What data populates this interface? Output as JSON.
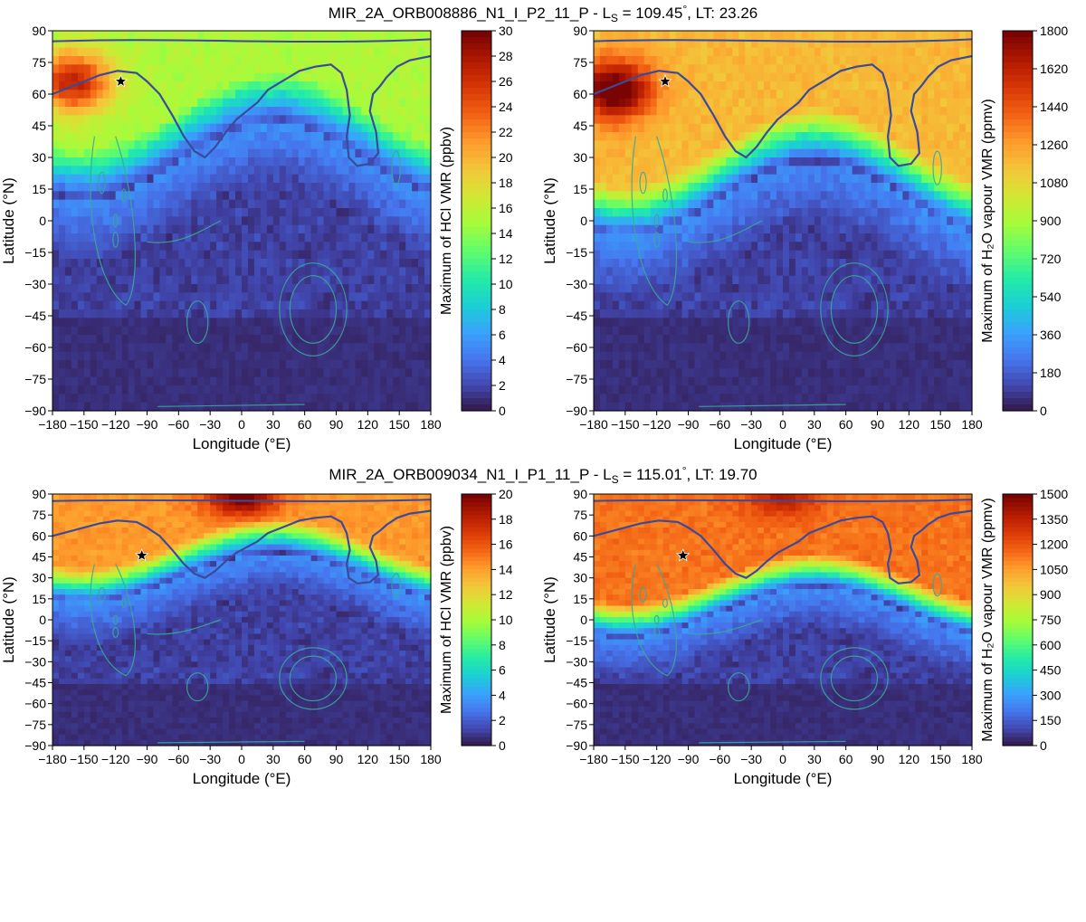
{
  "figure": {
    "rows": [
      {
        "title": "MIR_2A_ORB008886_N1_I_P2_11_P - L",
        "title_sub": "S",
        "title_tail": " = 109.45",
        "title_deg": "°",
        "title_end": ", LT: 23.26"
      },
      {
        "title": "MIR_2A_ORB009034_N1_I_P1_11_P - L",
        "title_sub": "S",
        "title_tail": " = 115.01",
        "title_deg": "°",
        "title_end": ", LT: 19.70"
      }
    ]
  },
  "colors": {
    "colormap": [
      "#30123b",
      "#4145ab",
      "#4675ed",
      "#39a2fc",
      "#1bcfd4",
      "#24eca6",
      "#61fc6c",
      "#a4fc3b",
      "#d1e834",
      "#f3c63a",
      "#fe9b2d",
      "#f36315",
      "#d93806",
      "#b11901",
      "#7a0402"
    ],
    "outline": "#3b4a9a",
    "contour": "#3aa89a",
    "star": "#000000"
  },
  "chart_data": [
    {
      "type": "heatmap",
      "panel": "top-left",
      "xlabel": "Longitude (°E)",
      "ylabel": "Latitude (°N)",
      "xlim": [
        -180,
        180
      ],
      "ylim": [
        -90,
        90
      ],
      "xticks": [
        "−180",
        "−150",
        "−120",
        "−90",
        "−60",
        "−30",
        "0",
        "30",
        "60",
        "90",
        "120",
        "150",
        "180"
      ],
      "yticks": [
        "90",
        "75",
        "60",
        "45",
        "30",
        "15",
        "0",
        "−15",
        "−30",
        "−45",
        "−60",
        "−75",
        "−90"
      ],
      "colorbar": {
        "label": "Maximum of HCl VMR (ppbv)",
        "range": [
          0,
          30
        ],
        "ticks": [
          "30",
          "28",
          "26",
          "24",
          "22",
          "20",
          "18",
          "16",
          "14",
          "12",
          "10",
          "8",
          "6",
          "4",
          "2",
          "0"
        ]
      },
      "star": {
        "lon": -115,
        "lat": 66
      },
      "field": {
        "north_level": 0.45,
        "edge_lat": 28,
        "hotspot": {
          "lon": -160,
          "lat": 66,
          "level": 0.85
        }
      }
    },
    {
      "type": "heatmap",
      "panel": "top-right",
      "xlabel": "Longitude (°E)",
      "ylabel": "Latitude (°N)",
      "xlim": [
        -180,
        180
      ],
      "ylim": [
        -90,
        90
      ],
      "xticks": [
        "−180",
        "−150",
        "−120",
        "−90",
        "−60",
        "−30",
        "0",
        "30",
        "60",
        "90",
        "120",
        "150",
        "180"
      ],
      "yticks": [
        "90",
        "75",
        "60",
        "45",
        "30",
        "15",
        "0",
        "−15",
        "−30",
        "−45",
        "−60",
        "−75",
        "−90"
      ],
      "colorbar": {
        "label": "Maximum of H₂O vapour VMR (ppmv)",
        "range": [
          0,
          1800
        ],
        "ticks": [
          "1800",
          "1620",
          "1440",
          "1260",
          "1080",
          "900",
          "720",
          "540",
          "360",
          "180",
          "0"
        ]
      },
      "star": {
        "lon": -112,
        "lat": 66
      },
      "field": {
        "north_level": 0.6,
        "edge_lat": 10,
        "hotspot": {
          "lon": -160,
          "lat": 62,
          "level": 1.0
        }
      }
    },
    {
      "type": "heatmap",
      "panel": "bottom-left",
      "xlabel": "Longitude (°E)",
      "ylabel": "Latitude (°N)",
      "xlim": [
        -180,
        180
      ],
      "ylim": [
        -90,
        90
      ],
      "xticks": [
        "−180",
        "−150",
        "−120",
        "−90",
        "−60",
        "−30",
        "0",
        "30",
        "60",
        "90",
        "120",
        "150",
        "180"
      ],
      "yticks": [
        "90",
        "75",
        "60",
        "45",
        "30",
        "15",
        "0",
        "−15",
        "−30",
        "−45",
        "−60",
        "−75",
        "−90"
      ],
      "colorbar": {
        "label": "Maximum of HCl VMR (ppbv)",
        "range": [
          0,
          20
        ],
        "ticks": [
          "20",
          "18",
          "16",
          "14",
          "12",
          "10",
          "8",
          "6",
          "4",
          "2",
          "0"
        ]
      },
      "star": {
        "lon": -95,
        "lat": 46
      },
      "field": {
        "north_level": 0.65,
        "edge_lat": 30,
        "hotspot": {
          "lon": 0,
          "lat": 88,
          "level": 0.95
        }
      }
    },
    {
      "type": "heatmap",
      "panel": "bottom-right",
      "xlabel": "Longitude (°E)",
      "ylabel": "Latitude (°N)",
      "xlim": [
        -180,
        180
      ],
      "ylim": [
        -90,
        90
      ],
      "xticks": [
        "−180",
        "−150",
        "−120",
        "−90",
        "−60",
        "−30",
        "0",
        "30",
        "60",
        "90",
        "120",
        "150",
        "180"
      ],
      "yticks": [
        "90",
        "75",
        "60",
        "45",
        "30",
        "15",
        "0",
        "−15",
        "−30",
        "−45",
        "−60",
        "−75",
        "−90"
      ],
      "colorbar": {
        "label": "Maximum of H₂O vapour VMR (ppmv)",
        "range": [
          0,
          1500
        ],
        "ticks": [
          "1500",
          "1350",
          "1200",
          "1050",
          "900",
          "750",
          "600",
          "450",
          "300",
          "150",
          "0"
        ]
      },
      "star": {
        "lon": -95,
        "lat": 46
      },
      "field": {
        "north_level": 0.7,
        "edge_lat": 5,
        "hotspot": {
          "lon": 0,
          "lat": 88,
          "level": 0.85
        }
      }
    }
  ]
}
